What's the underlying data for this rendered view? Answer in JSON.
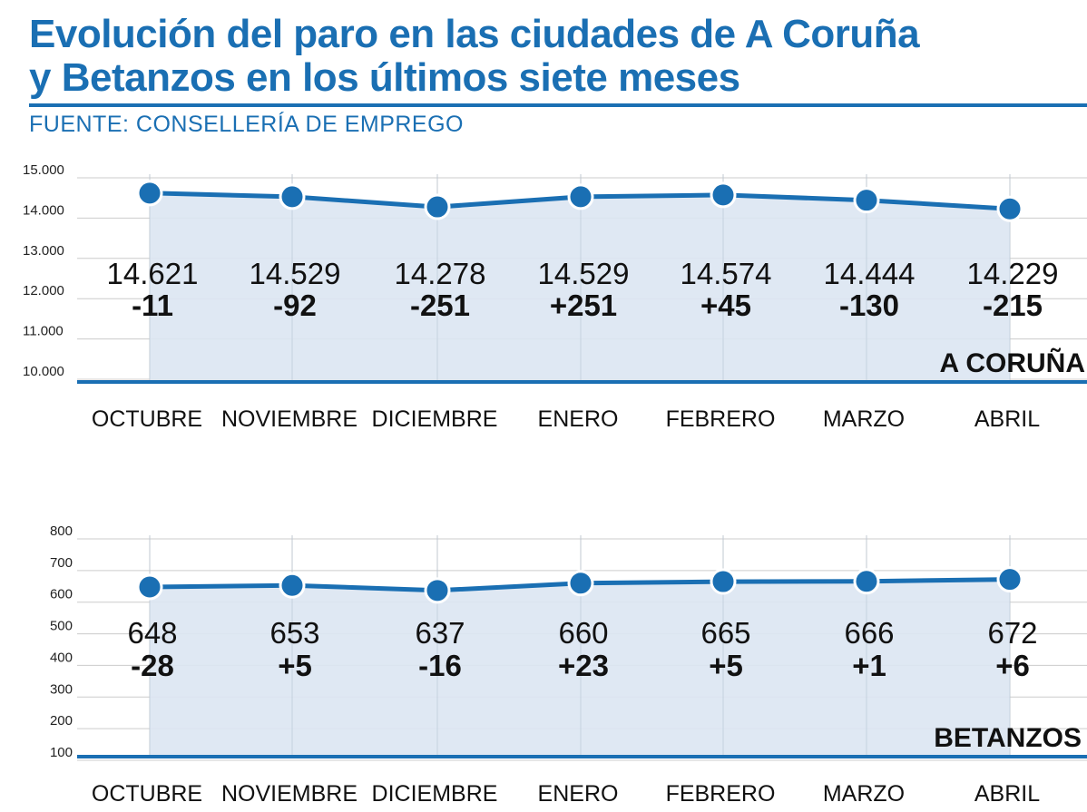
{
  "header": {
    "title_line1": "Evolución del paro en las ciudades de A Coruña",
    "title_line2": "y Betanzos en los últimos siete meses",
    "source": "FUENTE: CONSELLERÍA DE EMPREGO"
  },
  "colors": {
    "accent": "#1a6fb3",
    "area_fill": "#dce6f2",
    "grid": "#cccccc",
    "text": "#111111"
  },
  "chart_data": [
    {
      "type": "area",
      "title": "A CORUÑA",
      "categories": [
        "OCTUBRE",
        "NOVIEMBRE",
        "DICIEMBRE",
        "ENERO",
        "FEBRERO",
        "MARZO",
        "ABRIL"
      ],
      "values": [
        14621,
        14529,
        14278,
        14529,
        14574,
        14444,
        14229
      ],
      "value_labels": [
        "14.621",
        "14.529",
        "14.278",
        "14.529",
        "14.574",
        "14.444",
        "14.229"
      ],
      "change_labels": [
        "-11",
        "-92",
        "-251",
        "+251",
        "+45",
        "-130",
        "-215"
      ],
      "yticks": [
        "15.000",
        "14.000",
        "13.000",
        "12.000",
        "11.000",
        "10.000"
      ],
      "ylim": [
        10000,
        15000
      ],
      "xlabel": "",
      "ylabel": ""
    },
    {
      "type": "area",
      "title": "BETANZOS",
      "categories": [
        "OCTUBRE",
        "NOVIEMBRE",
        "DICIEMBRE",
        "ENERO",
        "FEBRERO",
        "MARZO",
        "ABRIL"
      ],
      "values": [
        648,
        653,
        637,
        660,
        665,
        666,
        672
      ],
      "value_labels": [
        "648",
        "653",
        "637",
        "660",
        "665",
        "666",
        "672"
      ],
      "change_labels": [
        "-28",
        "+5",
        "-16",
        "+23",
        "+5",
        "+1",
        "+6"
      ],
      "yticks": [
        "800",
        "700",
        "600",
        "500",
        "400",
        "300",
        "200",
        "100"
      ],
      "ylim": [
        100,
        800
      ],
      "xlabel": "",
      "ylabel": ""
    }
  ]
}
